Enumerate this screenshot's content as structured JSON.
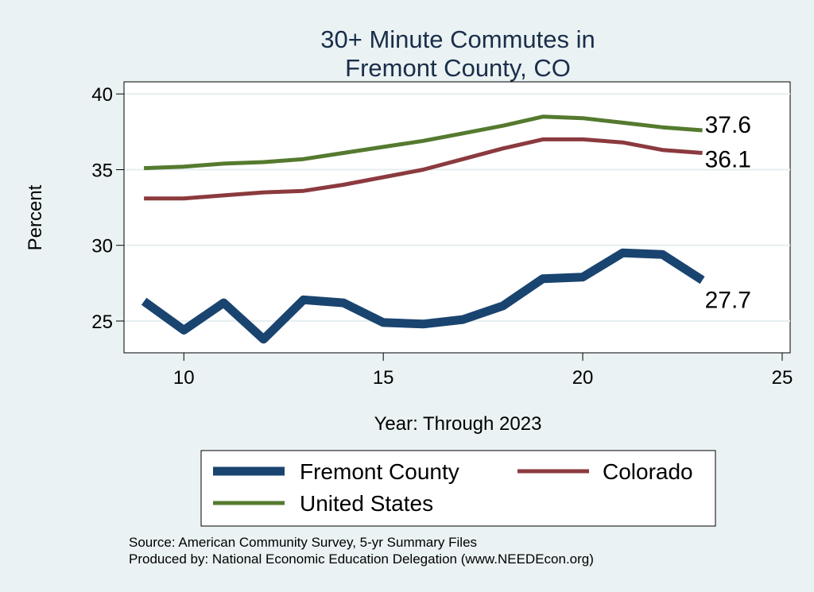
{
  "chart_data": {
    "type": "line",
    "title": [
      "30+ Minute Commutes in",
      "Fremont County, CO"
    ],
    "xlabel": "Year: Through 2023",
    "ylabel": "Percent",
    "xlim": [
      8.5,
      25.2
    ],
    "ylim": [
      22.9,
      40.8
    ],
    "x_ticks": [
      10,
      15,
      20,
      25
    ],
    "y_ticks": [
      25,
      30,
      35,
      40
    ],
    "grid": true,
    "legend_position": "bottom",
    "x": [
      9,
      10,
      11,
      12,
      13,
      14,
      15,
      16,
      17,
      18,
      19,
      20,
      21,
      22,
      23
    ],
    "series": [
      {
        "name": "Fremont County",
        "color": "#1a4470",
        "values": [
          26.3,
          24.4,
          26.2,
          23.8,
          26.4,
          26.2,
          24.9,
          24.8,
          25.1,
          26.0,
          27.8,
          27.9,
          29.5,
          29.4,
          27.7
        ],
        "end_label": "27.7"
      },
      {
        "name": "Colorado",
        "color": "#8b3a3e",
        "values": [
          33.1,
          33.1,
          33.3,
          33.5,
          33.6,
          34.0,
          34.5,
          35.0,
          35.7,
          36.4,
          37.0,
          37.0,
          36.8,
          36.3,
          36.1
        ],
        "end_label": "36.1"
      },
      {
        "name": "United States",
        "color": "#557a2f",
        "values": [
          35.1,
          35.2,
          35.4,
          35.5,
          35.7,
          36.1,
          36.5,
          36.9,
          37.4,
          37.9,
          38.5,
          38.4,
          38.1,
          37.8,
          37.6
        ],
        "end_label": "37.6"
      }
    ]
  },
  "notes": {
    "source": "Source: American Community Survey, 5-yr Summary Files",
    "produced_by": "Produced by: National Economic Education Delegation (www.NEEDEcon.org)"
  }
}
